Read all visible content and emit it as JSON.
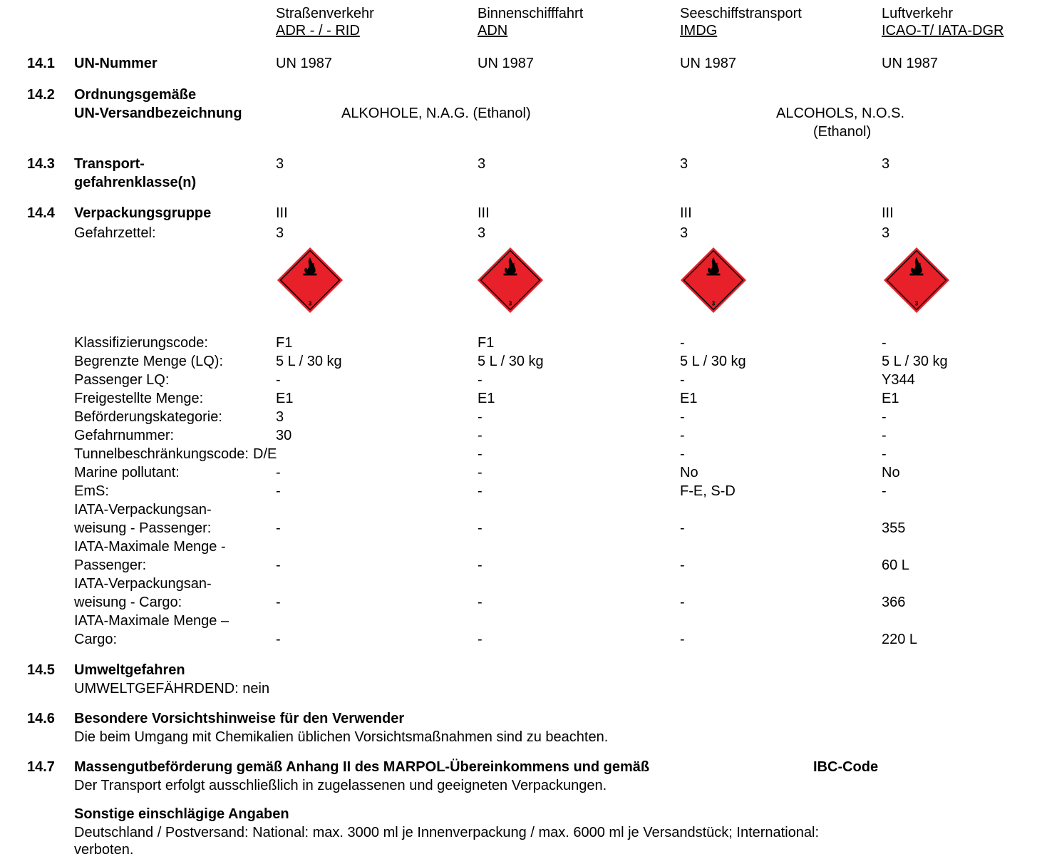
{
  "columns": [
    {
      "name": "Straßenverkehr",
      "code": "ADR - / - RID"
    },
    {
      "name": "Binnenschifffahrt",
      "code": "ADN"
    },
    {
      "name": "Seeschiffstransport",
      "code": "IMDG"
    },
    {
      "name": "Luftverkehr",
      "code": "ICAO-T/ IATA-DGR"
    }
  ],
  "s141": {
    "num": "14.1",
    "title": "UN-Nummer",
    "values": [
      "UN 1987",
      "UN 1987",
      "UN 1987",
      "UN 1987"
    ]
  },
  "s142": {
    "num": "14.2",
    "title1": "Ordnungsgemäße",
    "title2": "UN-Versandbezeichnung",
    "value_de": "ALKOHOLE, N.A.G. (Ethanol)",
    "value_en1": "ALCOHOLS, N.O.S.",
    "value_en2": "(Ethanol)"
  },
  "s143": {
    "num": "14.3",
    "title1": "Transport-",
    "title2": "gefahrenklasse(n)",
    "values": [
      "3",
      "3",
      "3",
      "3"
    ]
  },
  "s144": {
    "num": "14.4",
    "title": "Verpackungsgruppe",
    "values": [
      "III",
      "III",
      "III",
      "III"
    ],
    "gefahrzettel_label": "Gefahrzettel:",
    "gefahrzettel_values": [
      "3",
      "3",
      "3",
      "3"
    ],
    "hazard_label_number": "3"
  },
  "details": [
    {
      "label": "Klassifizierungscode:",
      "values": [
        "F1",
        "F1",
        "-",
        "-"
      ]
    },
    {
      "label": "Begrenzte Menge (LQ):",
      "values": [
        "5 L / 30 kg",
        "5 L / 30 kg",
        "5 L / 30 kg",
        "5 L / 30 kg"
      ]
    },
    {
      "label": "Passenger LQ:",
      "values": [
        "-",
        "-",
        "-",
        "Y344"
      ]
    },
    {
      "label": "Freigestellte Menge:",
      "values": [
        "E1",
        "E1",
        "E1",
        "E1"
      ]
    },
    {
      "label": "Beförderungskategorie:",
      "values": [
        "3",
        "-",
        "-",
        "-"
      ]
    },
    {
      "label": "Gefahrnummer:",
      "values": [
        "30",
        "-",
        "-",
        "-"
      ]
    },
    {
      "label": "Tunnelbeschränkungscode:",
      "values": [
        "D/E",
        "-",
        "-",
        "-"
      ]
    },
    {
      "label": "Marine pollutant:",
      "values": [
        "-",
        "-",
        "No",
        "No"
      ]
    },
    {
      "label": "EmS:",
      "values": [
        "-",
        "-",
        "F-E, S-D",
        "-"
      ]
    }
  ],
  "iata": [
    {
      "label1": "IATA-Verpackungsan-",
      "label2": "weisung - Passenger:",
      "values": [
        "-",
        "-",
        "-",
        "355"
      ]
    },
    {
      "label1": "IATA-Maximale Menge -",
      "label2": "Passenger:",
      "values": [
        "-",
        "-",
        "-",
        "60 L"
      ]
    },
    {
      "label1": "IATA-Verpackungsan-",
      "label2": "weisung - Cargo:",
      "values": [
        "-",
        "-",
        "-",
        "366"
      ]
    },
    {
      "label1": "IATA-Maximale Menge –",
      "label2": "Cargo:",
      "values": [
        "-",
        "-",
        "-",
        "220 L"
      ]
    }
  ],
  "s145": {
    "num": "14.5",
    "title": "Umweltgefahren",
    "text": "UMWELTGEFÄHRDEND: nein"
  },
  "s146": {
    "num": "14.6",
    "title": "Besondere Vorsichtshinweise für den Verwender",
    "text": "Die beim Umgang mit Chemikalien üblichen Vorsichtsmaßnahmen sind zu beachten."
  },
  "s147": {
    "num": "14.7",
    "title": "Massengutbeförderung gemäß Anhang II des MARPOL-Übereinkommens und gemäß",
    "title_end": "IBC-Code",
    "text": "Der Transport erfolgt ausschließlich in zugelassenen und geeigneten Verpackungen."
  },
  "other": {
    "title": "Sonstige einschlägige Angaben",
    "line1": "Deutschland / Postversand: National: max. 3000 ml je Innenverpackung / max. 6000 ml je Versandstück; International:",
    "line2": "verboten."
  },
  "colors": {
    "label_red": "#e8202a",
    "label_border": "#000000"
  }
}
